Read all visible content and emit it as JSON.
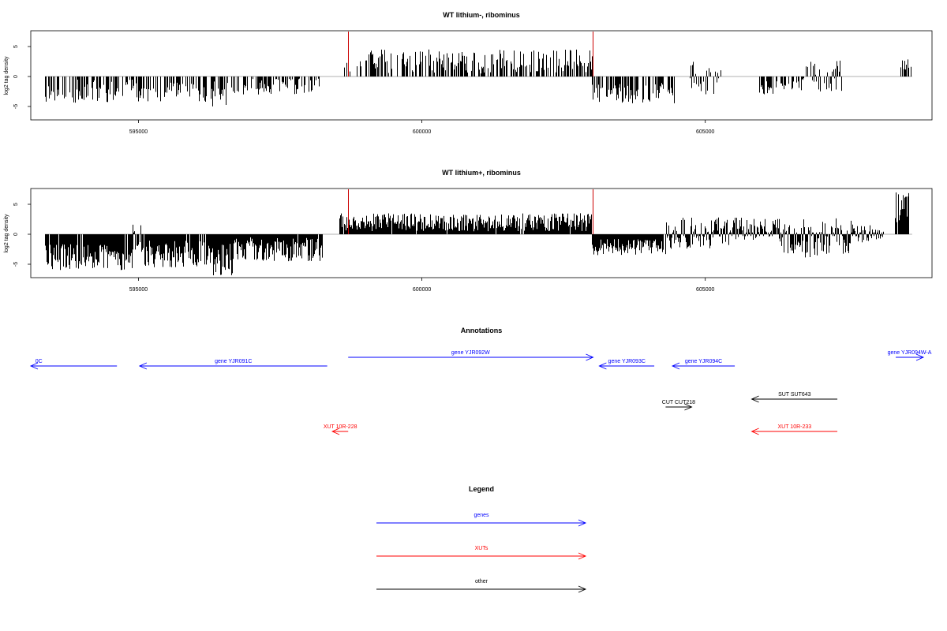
{
  "colors": {
    "genes": "#0000ff",
    "xuts": "#ff0000",
    "other": "#000000",
    "marker": "#cc0000",
    "bar": "#000000",
    "zero_line": "#999999"
  },
  "chart_data": [
    {
      "type": "bar",
      "title": "WT lithium-, ribominus",
      "ylabel": "log2 tag density",
      "xlim": [
        593100,
        609000
      ],
      "ylim": [
        -7.5,
        7.5
      ],
      "x_ticks": [
        595000,
        600000,
        605000
      ],
      "x_tick_labels": [
        "595000",
        "600000",
        "605000"
      ],
      "y_ticks": [
        -5,
        0,
        5
      ],
      "y_tick_labels": [
        "-5",
        "0",
        "5"
      ],
      "markers": [
        {
          "x": 598700,
          "y": 7.5
        },
        {
          "x": 603020,
          "y": 7.5
        }
      ],
      "series": [
        {
          "density": 0.55,
          "seed": 11,
          "segments": [
            {
              "start": 593350,
              "end": 594650,
              "lo": -4.5,
              "hi": -0.5
            },
            {
              "start": 594650,
              "end": 595000,
              "lo": -3.5,
              "hi": -0.5
            },
            {
              "start": 595000,
              "end": 596100,
              "lo": -4.2,
              "hi": -1.0
            },
            {
              "start": 596100,
              "end": 596850,
              "lo": -5.0,
              "hi": -0.8
            },
            {
              "start": 596850,
              "end": 598200,
              "lo": -3.0,
              "hi": -0.3
            },
            {
              "start": 598580,
              "end": 603000,
              "lo": 0.5,
              "hi": 4.5
            },
            {
              "start": 603000,
              "end": 604450,
              "lo": -4.5,
              "hi": -1.0
            },
            {
              "start": 604700,
              "end": 605300,
              "lo": -3.0,
              "hi": 2.5
            },
            {
              "start": 605950,
              "end": 606700,
              "lo": -3.0,
              "hi": -0.8
            },
            {
              "start": 606700,
              "end": 607400,
              "lo": -2.5,
              "hi": 2.8
            },
            {
              "start": 608450,
              "end": 608650,
              "lo": 1.0,
              "hi": 3.0
            }
          ]
        }
      ]
    },
    {
      "type": "bar",
      "title": "WT lithium+, ribominus",
      "ylabel": "log2 tag density",
      "xlim": [
        593100,
        609000
      ],
      "ylim": [
        -7.5,
        7.5
      ],
      "x_ticks": [
        595000,
        600000,
        605000
      ],
      "x_tick_labels": [
        "595000",
        "600000",
        "605000"
      ],
      "y_ticks": [
        -5,
        0,
        5
      ],
      "y_tick_labels": [
        "-5",
        "0",
        "5"
      ],
      "markers": [
        {
          "x": 598700,
          "y": 7.5
        },
        {
          "x": 603020,
          "y": 7.5
        }
      ],
      "series": [
        {
          "density": 0.95,
          "seed": 29,
          "segments": [
            {
              "start": 593350,
              "end": 594900,
              "lo": -6.0,
              "hi": -1.5
            },
            {
              "start": 594900,
              "end": 595050,
              "lo": -3.0,
              "hi": 1.8
            },
            {
              "start": 595050,
              "end": 596300,
              "lo": -5.5,
              "hi": -1.0
            },
            {
              "start": 596300,
              "end": 596650,
              "lo": -7.0,
              "hi": -1.5
            },
            {
              "start": 596650,
              "end": 598250,
              "lo": -4.5,
              "hi": -0.5
            },
            {
              "start": 598550,
              "end": 603000,
              "lo": 0.5,
              "hi": 3.5
            },
            {
              "start": 603000,
              "end": 604300,
              "lo": -3.5,
              "hi": -0.8
            },
            {
              "start": 604300,
              "end": 605500,
              "lo": -2.5,
              "hi": 2.8
            },
            {
              "start": 605500,
              "end": 606300,
              "lo": -1.0,
              "hi": 2.8
            },
            {
              "start": 606300,
              "end": 607600,
              "lo": -4.0,
              "hi": 2.8
            },
            {
              "start": 607600,
              "end": 608150,
              "lo": -1.5,
              "hi": 1.5
            },
            {
              "start": 608350,
              "end": 608600,
              "lo": 1.5,
              "hi": 7.5
            }
          ]
        }
      ]
    }
  ],
  "annotations": {
    "title": "Annotations",
    "features": [
      {
        "label": "0C",
        "type": "genes",
        "strand": "-",
        "start": 593100,
        "end": 594620,
        "row": 1,
        "label_x": 593180
      },
      {
        "label": "gene YJR091C",
        "type": "genes",
        "strand": "-",
        "start": 595020,
        "end": 598330,
        "row": 1
      },
      {
        "label": "gene YJR092W",
        "type": "genes",
        "strand": "+",
        "start": 598700,
        "end": 603020,
        "row": 0
      },
      {
        "label": "gene YJR093C",
        "type": "genes",
        "strand": "-",
        "start": 603130,
        "end": 604100,
        "row": 1
      },
      {
        "label": "gene YJR094C",
        "type": "genes",
        "strand": "-",
        "start": 604420,
        "end": 605520,
        "row": 1
      },
      {
        "label": "gene YJR094W-A",
        "type": "genes",
        "strand": "+",
        "start": 608360,
        "end": 608900,
        "row": 0
      },
      {
        "label": "SUT SUT643",
        "type": "other",
        "strand": "-",
        "start": 605820,
        "end": 607330,
        "row": 2
      },
      {
        "label": "CUT CUT218",
        "type": "other",
        "strand": "+",
        "start": 604300,
        "end": 604760,
        "row": 3
      },
      {
        "label": "XUT 10R-228",
        "type": "xuts",
        "strand": "-",
        "start": 598420,
        "end": 598700,
        "row": 4
      },
      {
        "label": "XUT 10R-233",
        "type": "xuts",
        "strand": "-",
        "start": 605820,
        "end": 607330,
        "row": 4
      }
    ]
  },
  "legend": {
    "title": "Legend",
    "items": [
      {
        "label": "genes",
        "type": "genes"
      },
      {
        "label": "XUTs",
        "type": "xuts"
      },
      {
        "label": "other",
        "type": "other"
      }
    ]
  }
}
